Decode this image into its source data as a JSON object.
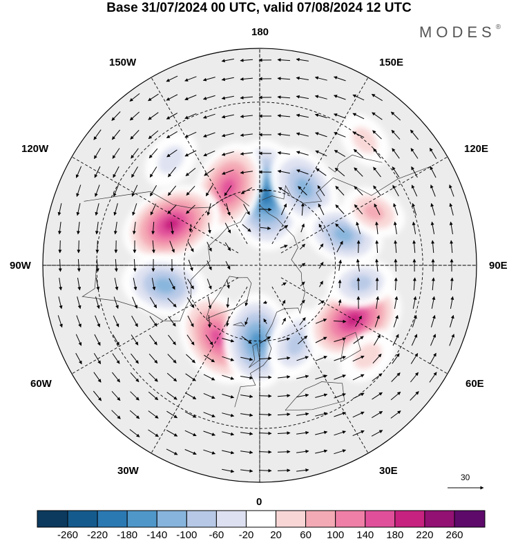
{
  "title": "Base 31/07/2024 00 UTC, valid 07/08/2024 12 UTC",
  "brand": "MODES",
  "brand_mark": "®",
  "longitude_labels": {
    "top": "180",
    "bottom": "0",
    "left": "90W",
    "right": "90E",
    "upper_left_1": "150W",
    "upper_left_2": "120W",
    "upper_right_1": "150E",
    "upper_right_2": "120E",
    "lower_left_1": "60W",
    "lower_left_2": "30W",
    "lower_right_1": "60E",
    "lower_right_2": "30E"
  },
  "wind_reference": {
    "value": "30"
  },
  "colorbar": {
    "labels": [
      "-260",
      "-220",
      "-180",
      "-140",
      "-100",
      "-60",
      "-20",
      "20",
      "60",
      "100",
      "140",
      "180",
      "220",
      "260"
    ],
    "colors": [
      "#0b3a5e",
      "#155a8c",
      "#2b79b3",
      "#4f97c9",
      "#86b4dc",
      "#b6c8e6",
      "#dde0f0",
      "#ffffff",
      "#f9d6d6",
      "#f3aab4",
      "#ef7fa6",
      "#e0509a",
      "#c7227f",
      "#921173",
      "#5e0a6b"
    ]
  },
  "anomaly_centers": [
    {
      "lon": 175,
      "lat": 62,
      "value": -230
    },
    {
      "lon": 150,
      "lat": 55,
      "value": -150
    },
    {
      "lon": -158,
      "lat": 57,
      "value": 170
    },
    {
      "lon": -115,
      "lat": 52,
      "value": 200
    },
    {
      "lon": -78,
      "lat": 52,
      "value": -150
    },
    {
      "lon": -30,
      "lat": 57,
      "value": 190
    },
    {
      "lon": -2,
      "lat": 60,
      "value": -180
    },
    {
      "lon": 25,
      "lat": 56,
      "value": -110
    },
    {
      "lon": 60,
      "lat": 48,
      "value": 200
    },
    {
      "lon": 80,
      "lat": 50,
      "value": -90
    },
    {
      "lon": 110,
      "lat": 55,
      "value": -130
    },
    {
      "lon": 115,
      "lat": 42,
      "value": 80
    },
    {
      "lon": 140,
      "lat": 30,
      "value": 60
    },
    {
      "lon": -140,
      "lat": 38,
      "value": -70
    },
    {
      "lon": 50,
      "lat": 37,
      "value": 70
    }
  ]
}
